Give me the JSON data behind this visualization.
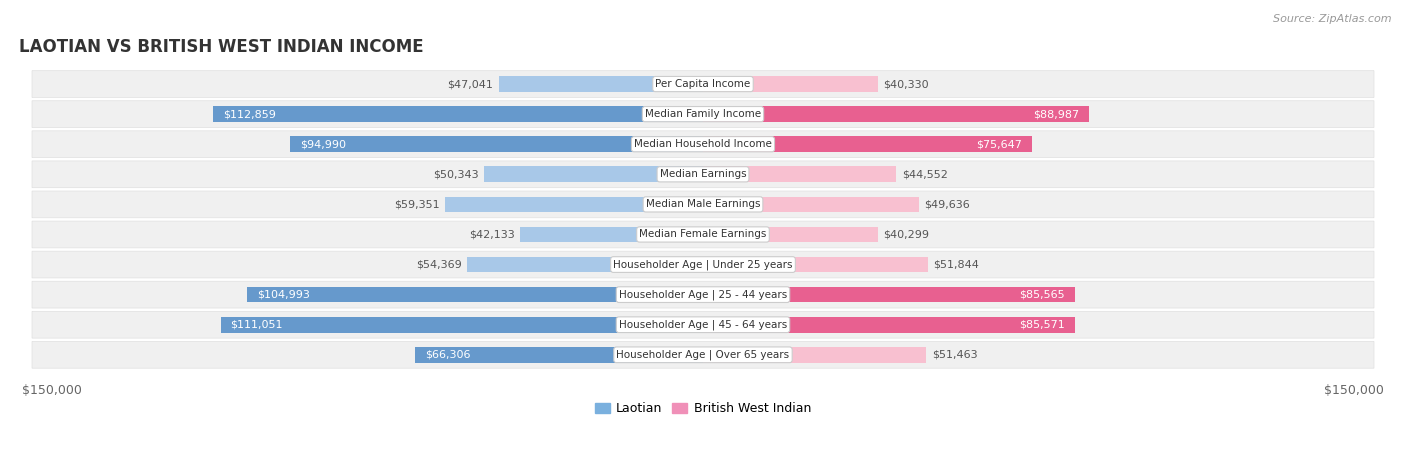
{
  "title": "LAOTIAN VS BRITISH WEST INDIAN INCOME",
  "source": "Source: ZipAtlas.com",
  "categories": [
    "Per Capita Income",
    "Median Family Income",
    "Median Household Income",
    "Median Earnings",
    "Median Male Earnings",
    "Median Female Earnings",
    "Householder Age | Under 25 years",
    "Householder Age | 25 - 44 years",
    "Householder Age | 45 - 64 years",
    "Householder Age | Over 65 years"
  ],
  "laotian_values": [
    47041,
    112859,
    94990,
    50343,
    59351,
    42133,
    54369,
    104993,
    111051,
    66306
  ],
  "british_values": [
    40330,
    88987,
    75647,
    44552,
    49636,
    40299,
    51844,
    85565,
    85571,
    51463
  ],
  "max_val": 150000,
  "laotian_color_light": "#a8c8e8",
  "laotian_color_dark": "#6699cc",
  "british_color_light": "#f8c0d0",
  "british_color_dark": "#e86090",
  "laotian_legend_color": "#7ab0de",
  "british_legend_color": "#f090b8",
  "row_bg": "#f0f0f0",
  "row_border": "#e0e0e0",
  "label_box_color": "#ffffff",
  "label_box_edge": "#cccccc",
  "title_fontsize": 12,
  "value_fontsize": 8,
  "cat_fontsize": 7.5,
  "legend_fontsize": 9,
  "source_fontsize": 8,
  "inside_threshold": 60000
}
